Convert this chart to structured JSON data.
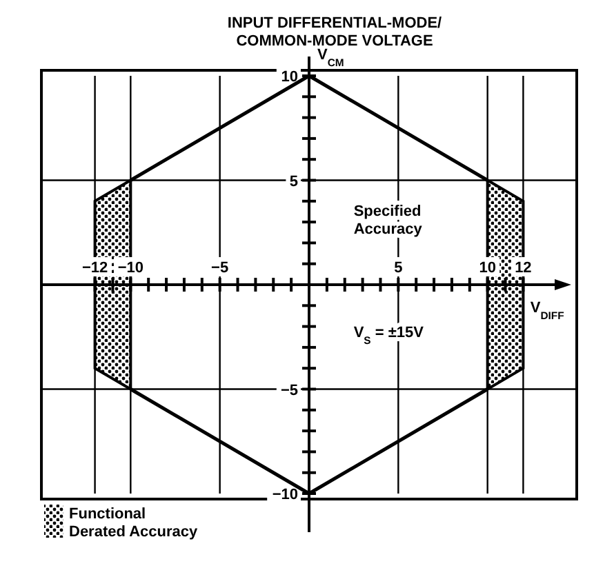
{
  "chart_data": {
    "type": "line",
    "title": "INPUT DIFFERENTIAL-MODE/ COMMON-MODE VOLTAGE",
    "xlabel": "V$_{DIFF}$",
    "ylabel": "V$_{CM}$",
    "xlim": [
      -15,
      15
    ],
    "ylim": [
      -10,
      10
    ],
    "xticks": [
      {
        "value": -12,
        "label": "−12"
      },
      {
        "value": -11,
        "label": null
      },
      {
        "value": -10,
        "label": "−10"
      },
      {
        "value": -9,
        "label": null
      },
      {
        "value": -8,
        "label": null
      },
      {
        "value": -7,
        "label": null
      },
      {
        "value": -6,
        "label": null
      },
      {
        "value": -5,
        "label": "−5"
      },
      {
        "value": -4,
        "label": null
      },
      {
        "value": -3,
        "label": null
      },
      {
        "value": -2,
        "label": null
      },
      {
        "value": -1,
        "label": null
      },
      {
        "value": 1,
        "label": null
      },
      {
        "value": 2,
        "label": null
      },
      {
        "value": 3,
        "label": null
      },
      {
        "value": 4,
        "label": null
      },
      {
        "value": 5,
        "label": "5"
      },
      {
        "value": 6,
        "label": null
      },
      {
        "value": 7,
        "label": null
      },
      {
        "value": 8,
        "label": null
      },
      {
        "value": 9,
        "label": null
      },
      {
        "value": 10,
        "label": "10"
      },
      {
        "value": 11,
        "label": null
      },
      {
        "value": 12,
        "label": "12"
      }
    ],
    "yticks": [
      {
        "value": -10,
        "label": "−10"
      },
      {
        "value": -9,
        "label": null
      },
      {
        "value": -8,
        "label": null
      },
      {
        "value": -7,
        "label": null
      },
      {
        "value": -6,
        "label": null
      },
      {
        "value": -5,
        "label": "−5"
      },
      {
        "value": -4,
        "label": null
      },
      {
        "value": -3,
        "label": null
      },
      {
        "value": -2,
        "label": null
      },
      {
        "value": -1,
        "label": null
      },
      {
        "value": 1,
        "label": null
      },
      {
        "value": 2,
        "label": null
      },
      {
        "value": 3,
        "label": null
      },
      {
        "value": 4,
        "label": null
      },
      {
        "value": 5,
        "label": "5"
      },
      {
        "value": 6,
        "label": null
      },
      {
        "value": 7,
        "label": null
      },
      {
        "value": 8,
        "label": null
      },
      {
        "value": 9,
        "label": null
      },
      {
        "value": 10,
        "label": "10"
      }
    ],
    "grid": true,
    "legend": "bottom left",
    "series": [
      {
        "color": "#000000",
        "x": [
          -10,
          0,
          10
        ],
        "values": [
          5,
          10,
          5
        ]
      },
      {
        "color": "#000000",
        "x": [
          -10,
          0,
          10
        ],
        "values": [
          -5,
          -10,
          -5
        ]
      },
      {
        "type": "area",
        "name": "Functional Derated Accuracy",
        "color": "#000000",
        "x": [
          10,
          12
        ],
        "values": [
          5,
          4
        ]
      },
      {
        "type": "area",
        "color": "#000000",
        "x": [
          10,
          12
        ],
        "values": [
          -5,
          -4
        ]
      },
      {
        "type": "area",
        "color": "#000000",
        "x": [
          -12,
          -10
        ],
        "values": [
          4,
          5
        ]
      },
      {
        "type": "area",
        "color": "#000000",
        "x": [
          -12,
          -10
        ],
        "values": [
          -4,
          -5
        ]
      }
    ],
    "annotations": [
      "Specified Accuracy",
      "V$_{S}$ = ±15V"
    ]
  }
}
